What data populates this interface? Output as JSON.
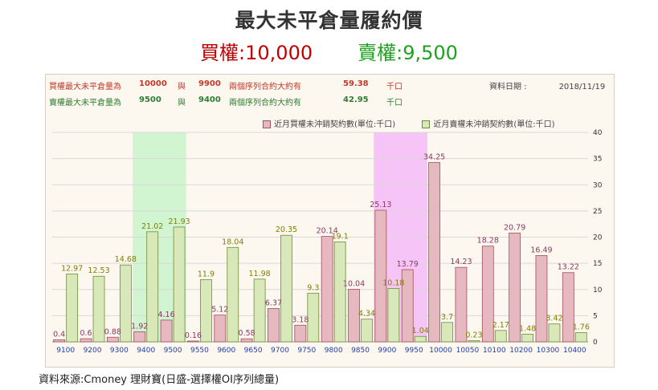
{
  "header": {
    "title": "最大未平倉量履約價",
    "call_label": "買權:",
    "call_value": "10,000",
    "put_label": "賣權:",
    "put_value": "9,500"
  },
  "summary": {
    "call": {
      "label": "買權最大未平倉量為",
      "value1": "10000",
      "and": "與",
      "value2": "9900",
      "desc": "兩個序列合約大約有",
      "amount": "59.38",
      "unit": "千口"
    },
    "put": {
      "label": "賣權最大未平倉量為",
      "value1": "9500",
      "and": "與",
      "value2": "9400",
      "desc": "兩個序列合約大約有",
      "amount": "42.95",
      "unit": "千口"
    },
    "date_label": "資料日期 :",
    "date_value": "2018/11/19"
  },
  "chart_data": {
    "type": "bar",
    "categories": [
      "9100",
      "9200",
      "9300",
      "9400",
      "9500",
      "9550",
      "9600",
      "9650",
      "9700",
      "9750",
      "9800",
      "9850",
      "9900",
      "9950",
      "10000",
      "10050",
      "10100",
      "10200",
      "10300",
      "10400"
    ],
    "series": [
      {
        "name": "近月買權未沖銷契約數(單位:千口)",
        "color": "#e6b8bf",
        "stroke": "#a0505e",
        "label_color": "#8b3a62",
        "values": [
          0.4,
          0.6,
          0.88,
          1.92,
          4.16,
          0.16,
          5.12,
          0.58,
          6.37,
          3.18,
          20.14,
          10.04,
          25.13,
          13.79,
          34.25,
          14.23,
          18.28,
          20.79,
          16.49,
          13.22
        ]
      },
      {
        "name": "近月賣權未沖銷契約數(單位:千口)",
        "color": "#d9e8b8",
        "stroke": "#6e8b3d",
        "label_color": "#808000",
        "values": [
          12.97,
          12.53,
          14.68,
          21.02,
          21.93,
          11.9,
          18.04,
          11.98,
          20.35,
          9.3,
          19.1,
          4.34,
          10.18,
          1.04,
          3.7,
          0.23,
          2.17,
          1.48,
          3.42,
          1.76
        ]
      }
    ],
    "ylim": [
      0,
      40
    ],
    "yticks": [
      0,
      5,
      10,
      15,
      20,
      25,
      30,
      35,
      40
    ],
    "y_axis_side": "right",
    "grid": true,
    "highlights": [
      {
        "category": "9400",
        "to": "9500",
        "color": "#d0f5d0"
      },
      {
        "category": "9900",
        "to": "9950",
        "color": "#f7c4f7"
      }
    ]
  },
  "footer": {
    "source": "資料來源:Cmoney 理財寶(日盛-選擇權OI序列總量)"
  }
}
